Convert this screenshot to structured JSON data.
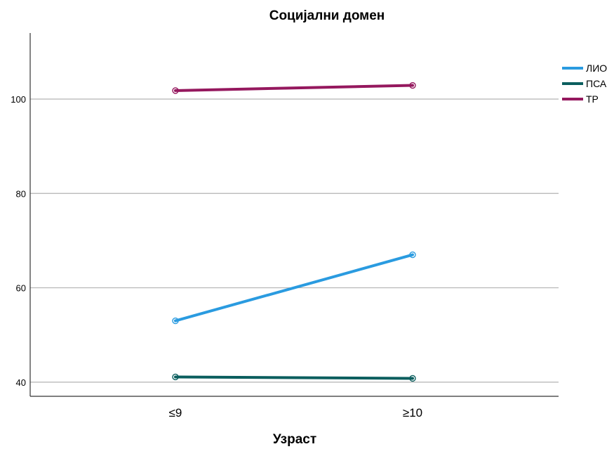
{
  "chart_data": {
    "type": "line",
    "title": "Социјални домен",
    "xlabel": "Узраст",
    "ylabel": "",
    "categories": [
      "≤9",
      "≥10"
    ],
    "yticks": [
      40,
      60,
      80,
      100
    ],
    "ylim": [
      37,
      114
    ],
    "grid": "horizontal",
    "legend_position": "top-right",
    "series": [
      {
        "name": "ЛИО",
        "values": [
          53,
          67
        ],
        "color": "#2a9be0"
      },
      {
        "name": "ПСА",
        "values": [
          41.1,
          40.8
        ],
        "color": "#0b5e5e"
      },
      {
        "name": "ТР",
        "values": [
          101.8,
          102.9
        ],
        "color": "#95185e"
      }
    ]
  }
}
